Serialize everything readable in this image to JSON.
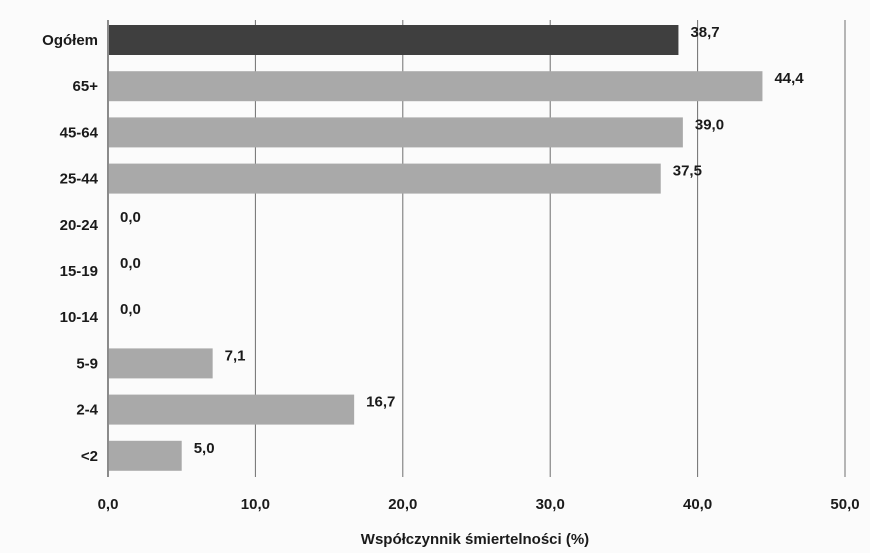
{
  "chart_data": {
    "type": "bar",
    "orientation": "horizontal",
    "categories": [
      "Ogółem",
      "65+",
      "45-64",
      "25-44",
      "20-24",
      "15-19",
      "10-14",
      "5-9",
      "2-4",
      "<2"
    ],
    "values": [
      38.7,
      44.4,
      39.0,
      37.5,
      0.0,
      0.0,
      0.0,
      7.1,
      16.7,
      5.0
    ],
    "value_labels": [
      "38,7",
      "44,4",
      "39,0",
      "37,5",
      "0,0",
      "0,0",
      "0,0",
      "7,1",
      "16,7",
      "5,0"
    ],
    "highlight_category": "Ogółem",
    "colors": {
      "highlight": "#3f3f3f",
      "bar": "#a9a9a9",
      "grid": "#6f6f6f",
      "text": "#1a1a1a"
    },
    "xlabel": "Współczynnik śmiertelności (%)",
    "ylabel": "",
    "xlim": [
      0,
      50
    ],
    "ticks": [
      0,
      10,
      20,
      30,
      40,
      50
    ],
    "tick_labels": [
      "0,0",
      "10,0",
      "20,0",
      "30,0",
      "40,0",
      "50,0"
    ],
    "grid": true,
    "legend": "none"
  }
}
